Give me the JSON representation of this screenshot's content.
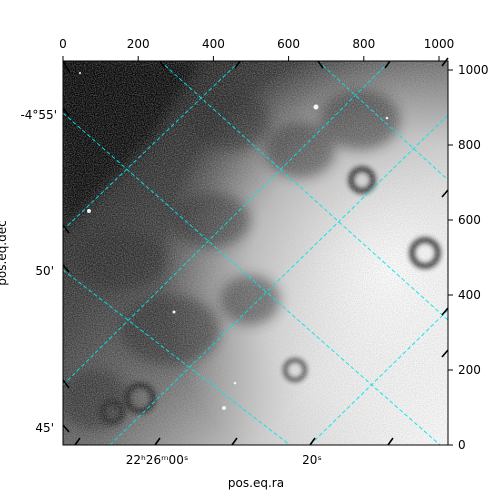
{
  "image": {
    "subject": "astronomical-sky-image",
    "colormap": "grayscale",
    "grid_color": "#00e5e5",
    "frame_color": "#000000"
  },
  "axes": {
    "pixel_x": {
      "ticks": [
        0,
        200,
        400,
        600,
        800,
        1000
      ],
      "labels": [
        "0",
        "200",
        "400",
        "600",
        "800",
        "1000"
      ],
      "range": [
        0,
        1024
      ]
    },
    "pixel_y": {
      "ticks": [
        0,
        200,
        400,
        600,
        800,
        1000
      ],
      "labels": [
        "0",
        "200",
        "400",
        "600",
        "800",
        "1000"
      ],
      "range": [
        0,
        1024
      ]
    },
    "ra": {
      "title": "pos.eq.ra",
      "labels": [
        "22ʰ26ᵐ00ˢ",
        "20ˢ"
      ]
    },
    "dec": {
      "title": "pos.eq.dec",
      "labels": [
        "-4°55'",
        "50'",
        "45'"
      ]
    }
  }
}
